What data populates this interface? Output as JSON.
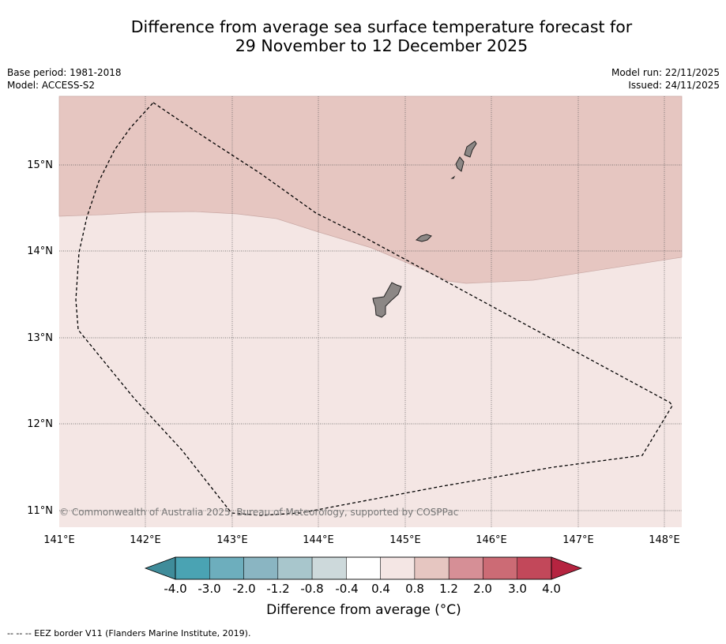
{
  "title": {
    "line1": "Difference from average sea surface temperature forecast for",
    "line2": "29 November to 12 December 2025"
  },
  "meta_left": {
    "base_period": "Base period: 1981-2018",
    "model": "Model: ACCESS-S2"
  },
  "meta_right": {
    "model_run": "Model run: 22/11/2025",
    "issued": "Issued: 24/11/2025"
  },
  "map": {
    "lon_ticks": [
      "141°E",
      "142°E",
      "143°E",
      "144°E",
      "145°E",
      "146°E",
      "147°E",
      "148°E"
    ],
    "lat_ticks": [
      "15°N",
      "14°N",
      "13°N",
      "12°N",
      "11°N"
    ],
    "lon_range": [
      141.0,
      148.2
    ],
    "lat_range": [
      10.8,
      15.8
    ],
    "copyright": "© Commonwealth of Australia 2025, Bureau of Meteorology, supported by COSPPac",
    "fill_warm": "#e6c6c1",
    "fill_mild": "#f4e6e4"
  },
  "colorbar": {
    "label": "Difference from average (°C)",
    "ticks": [
      "-4.0",
      "-3.0",
      "-2.0",
      "-1.2",
      "-0.8",
      "-0.4",
      "0.4",
      "0.8",
      "1.2",
      "2.0",
      "3.0",
      "4.0"
    ],
    "colors": [
      "#3f8c9a",
      "#4aa3b3",
      "#6daebd",
      "#8ab5c2",
      "#a8c6cc",
      "#cdd9db",
      "#ffffff",
      "#f4e6e4",
      "#e6c6c1",
      "#d68f96",
      "#cc6b75",
      "#c2485a",
      "#b52440"
    ]
  },
  "footer": "--  --  -- EEZ border V11 (Flanders Marine Institute, 2019)."
}
